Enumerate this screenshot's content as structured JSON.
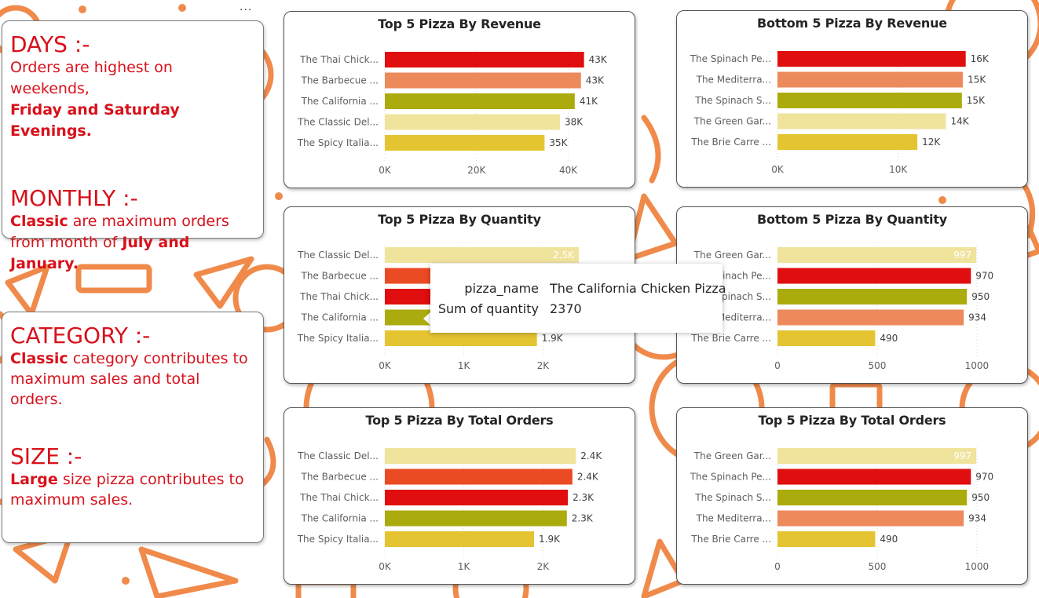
{
  "toolbar": {
    "more_options": "..."
  },
  "insights": [
    {
      "heading": "DAYS :-",
      "body": [
        {
          "text": "Orders are highest on weekends,",
          "bold": false
        },
        {
          "text": "Friday and Saturday Evenings.",
          "bold": true,
          "newline": true
        }
      ]
    },
    {
      "heading": "MONTHLY :-",
      "body": [
        {
          "text": "Classic",
          "bold": true
        },
        {
          "text": " are maximum orders from month of ",
          "bold": false
        },
        {
          "text": "July and January.",
          "bold": true
        }
      ]
    },
    {
      "heading": "CATEGORY :-",
      "body": [
        {
          "text": "Classic",
          "bold": true
        },
        {
          "text": " category contributes to maximum sales and total orders.",
          "bold": false
        }
      ]
    },
    {
      "heading": "SIZE :-",
      "body": [
        {
          "text": "Large",
          "bold": true
        },
        {
          "text": " size pizza contributes to maximum sales.",
          "bold": false
        }
      ]
    }
  ],
  "colors": {
    "accent_red": "#d8111b",
    "background_pattern": "#f08a4b",
    "bar_red": "#e00e0e",
    "bar_salmon": "#ec8a5c",
    "bar_orange_red": "#ea4b22",
    "bar_olive": "#abab0d",
    "bar_cream": "#f0e39c",
    "bar_gold": "#e5c432"
  },
  "chart_data": [
    {
      "type": "bar",
      "orientation": "horizontal",
      "title": "Top 5 Pizza By Revenue",
      "categories": [
        "The Thai Chick...",
        "The Barbecue ...",
        "The California ...",
        "The Classic Del...",
        "The Spicy Italia..."
      ],
      "values": [
        43434,
        42768,
        41410,
        38180,
        34831
      ],
      "data_labels": [
        "43K",
        "43K",
        "41K",
        "38K",
        "35K"
      ],
      "label_inside": [
        false,
        false,
        false,
        false,
        false
      ],
      "bar_colors": [
        "#e00e0e",
        "#ec8a5c",
        "#abab0d",
        "#f0e39c",
        "#e5c432"
      ],
      "xlim": [
        0,
        50000
      ],
      "xticks": [
        0,
        20000,
        40000
      ],
      "xtick_labels": [
        "0K",
        "20K",
        "40K"
      ]
    },
    {
      "type": "bar",
      "orientation": "horizontal",
      "title": "Bottom 5 Pizza By Revenue",
      "categories": [
        "The Spinach Pe...",
        "The Mediterra...",
        "The Spinach S...",
        "The Green Gar...",
        "The Brie Carre ..."
      ],
      "values": [
        15596,
        15361,
        15278,
        13956,
        11589
      ],
      "data_labels": [
        "16K",
        "15K",
        "15K",
        "14K",
        "12K"
      ],
      "label_inside": [
        false,
        false,
        false,
        false,
        false
      ],
      "bar_colors": [
        "#e00e0e",
        "#ec8a5c",
        "#abab0d",
        "#f0e39c",
        "#e5c432"
      ],
      "xlim": [
        0,
        19000
      ],
      "xticks": [
        0,
        10000
      ],
      "xtick_labels": [
        "0K",
        "10K"
      ]
    },
    {
      "type": "bar",
      "orientation": "horizontal",
      "title": "Top 5 Pizza By Quantity",
      "categories": [
        "The Classic Del...",
        "The Barbecue ...",
        "The Thai Chick...",
        "The California ...",
        "The Spicy Italia..."
      ],
      "values": [
        2453,
        2432,
        2371,
        2370,
        1924
      ],
      "data_labels": [
        "2.5K",
        "",
        "",
        "",
        "1.9K"
      ],
      "label_inside": [
        true,
        false,
        false,
        false,
        false
      ],
      "bar_colors": [
        "#f0e39c",
        "#ea4b22",
        "#e00e0e",
        "#abab0d",
        "#e5c432"
      ],
      "xlim": [
        0,
        2900
      ],
      "xticks": [
        0,
        1000,
        2000
      ],
      "xtick_labels": [
        "0K",
        "1K",
        "2K"
      ]
    },
    {
      "type": "bar",
      "orientation": "horizontal",
      "title": "Bottom 5 Pizza By Quantity",
      "categories": [
        "The Green Gar...",
        "The Spinach Pe...",
        "The Spinach S...",
        "The Mediterra...",
        "The Brie Carre ..."
      ],
      "values": [
        997,
        970,
        950,
        934,
        490
      ],
      "data_labels": [
        "997",
        "970",
        "950",
        "934",
        "490"
      ],
      "label_inside": [
        true,
        false,
        false,
        false,
        false
      ],
      "bar_colors": [
        "#f0e39c",
        "#e00e0e",
        "#abab0d",
        "#ec8a5c",
        "#e5c432"
      ],
      "xlim": [
        0,
        1150
      ],
      "xticks": [
        0,
        500,
        1000
      ],
      "xtick_labels": [
        "0",
        "500",
        "1000"
      ]
    },
    {
      "type": "bar",
      "orientation": "horizontal",
      "title": "Top 5 Pizza By Total Orders",
      "categories": [
        "The Classic Del...",
        "The Barbecue ...",
        "The Thai Chick...",
        "The California ...",
        "The Spicy Italia..."
      ],
      "values": [
        2416,
        2372,
        2315,
        2302,
        1887
      ],
      "data_labels": [
        "2.4K",
        "2.4K",
        "2.3K",
        "2.3K",
        "1.9K"
      ],
      "label_inside": [
        false,
        false,
        false,
        false,
        false
      ],
      "bar_colors": [
        "#f0e39c",
        "#ea4b22",
        "#e00e0e",
        "#abab0d",
        "#e5c432"
      ],
      "xlim": [
        0,
        2900
      ],
      "xticks": [
        0,
        1000,
        2000
      ],
      "xtick_labels": [
        "0K",
        "1K",
        "2K"
      ]
    },
    {
      "type": "bar",
      "orientation": "horizontal",
      "title": "Top 5 Pizza By Total Orders",
      "categories": [
        "The Green Gar...",
        "The Spinach Pe...",
        "The Spinach S...",
        "The Mediterra...",
        "The Brie Carre ..."
      ],
      "values": [
        997,
        970,
        950,
        934,
        490
      ],
      "data_labels": [
        "997",
        "970",
        "950",
        "934",
        "490"
      ],
      "label_inside": [
        true,
        false,
        false,
        false,
        false
      ],
      "bar_colors": [
        "#f0e39c",
        "#e00e0e",
        "#abab0d",
        "#ec8a5c",
        "#e5c432"
      ],
      "xlim": [
        0,
        1150
      ],
      "xticks": [
        0,
        500,
        1000
      ],
      "xtick_labels": [
        "0",
        "500",
        "1000"
      ]
    }
  ],
  "tooltip": {
    "rows": [
      {
        "key": "pizza_name",
        "value": "The California Chicken Pizza"
      },
      {
        "key": "Sum of quantity",
        "value": "2370"
      }
    ]
  }
}
